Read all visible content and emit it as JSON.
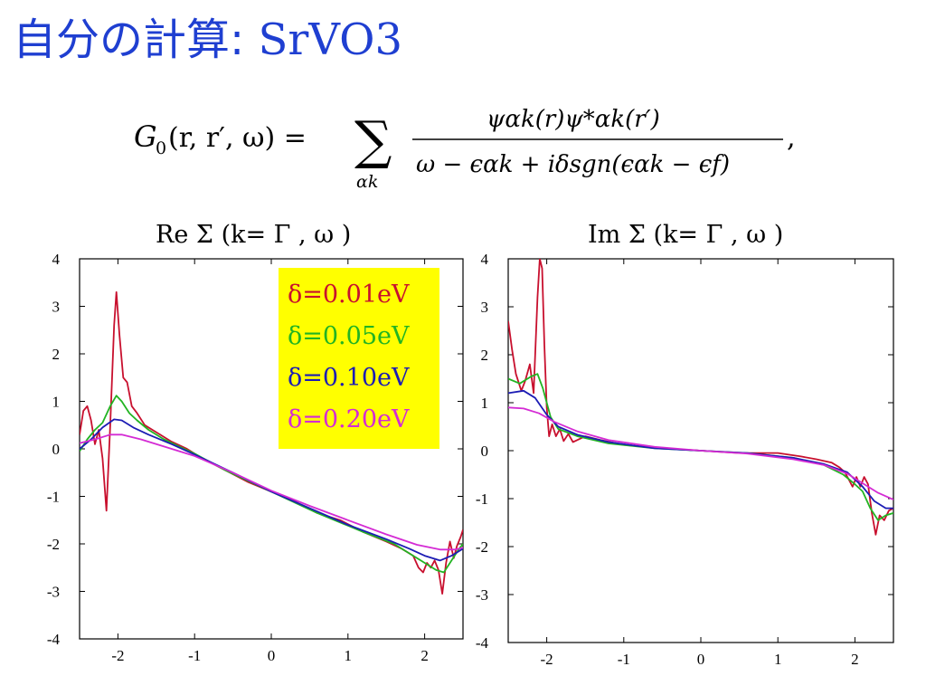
{
  "slide": {
    "title_jp": "自分の計算:",
    "title_latin": "SrVO3"
  },
  "formula": {
    "lhs": "G",
    "lhs_sub": "0",
    "lhs_args": "(r, r′, ω) =",
    "sum": "∑",
    "sum_sub": "αk",
    "numerator": "ψαk(r)ψ*αk(r′)",
    "denominator": "ω − ϵαk + iδsgn(ϵαk − ϵf)",
    "trail": ","
  },
  "legend": {
    "items": [
      {
        "label": "δ=0.01eV",
        "color": "#c8102e"
      },
      {
        "label": "δ=0.05eV",
        "color": "#22b422"
      },
      {
        "label": "δ=0.10eV",
        "color": "#1c1cb4"
      },
      {
        "label": "δ=0.20eV",
        "color": "#d42bd4"
      }
    ]
  },
  "colors": {
    "title": "#1f3fd1",
    "legend_bg": "#ffff00"
  },
  "chart_data": [
    {
      "type": "line",
      "title": "Re Σ (k= Γ , ω )",
      "xlim": [
        -2.5,
        2.5
      ],
      "ylim": [
        -4,
        4
      ],
      "xticks": [
        -2,
        -1,
        0,
        1,
        2
      ],
      "yticks": [
        4,
        3,
        2,
        1,
        0,
        -1,
        -2,
        -3,
        -4
      ],
      "series": [
        {
          "name": "δ=0.01eV",
          "color": "#c8102e",
          "points": [
            [
              -2.5,
              0.3
            ],
            [
              -2.45,
              0.8
            ],
            [
              -2.4,
              0.9
            ],
            [
              -2.35,
              0.6
            ],
            [
              -2.3,
              0.1
            ],
            [
              -2.25,
              0.4
            ],
            [
              -2.2,
              -0.2
            ],
            [
              -2.15,
              -1.3
            ],
            [
              -2.1,
              0.5
            ],
            [
              -2.05,
              2.6
            ],
            [
              -2.02,
              3.3
            ],
            [
              -1.98,
              2.4
            ],
            [
              -1.93,
              1.5
            ],
            [
              -1.88,
              1.4
            ],
            [
              -1.82,
              0.9
            ],
            [
              -1.75,
              0.75
            ],
            [
              -1.65,
              0.5
            ],
            [
              -1.5,
              0.35
            ],
            [
              -1.3,
              0.15
            ],
            [
              -1.1,
              0.0
            ],
            [
              -0.9,
              -0.2
            ],
            [
              -0.6,
              -0.45
            ],
            [
              -0.3,
              -0.7
            ],
            [
              0.0,
              -0.9
            ],
            [
              0.3,
              -1.1
            ],
            [
              0.6,
              -1.35
            ],
            [
              0.9,
              -1.5
            ],
            [
              1.2,
              -1.75
            ],
            [
              1.5,
              -1.95
            ],
            [
              1.7,
              -2.1
            ],
            [
              1.85,
              -2.25
            ],
            [
              1.92,
              -2.5
            ],
            [
              1.98,
              -2.6
            ],
            [
              2.03,
              -2.4
            ],
            [
              2.08,
              -2.5
            ],
            [
              2.13,
              -2.35
            ],
            [
              2.18,
              -2.55
            ],
            [
              2.23,
              -3.05
            ],
            [
              2.28,
              -2.4
            ],
            [
              2.33,
              -1.95
            ],
            [
              2.38,
              -2.3
            ],
            [
              2.42,
              -2.05
            ],
            [
              2.47,
              -1.85
            ],
            [
              2.5,
              -1.7
            ]
          ]
        },
        {
          "name": "δ=0.05eV",
          "color": "#22b422",
          "points": [
            [
              -2.5,
              -0.05
            ],
            [
              -2.4,
              0.2
            ],
            [
              -2.3,
              0.4
            ],
            [
              -2.2,
              0.55
            ],
            [
              -2.1,
              0.9
            ],
            [
              -2.02,
              1.12
            ],
            [
              -1.95,
              1.0
            ],
            [
              -1.85,
              0.75
            ],
            [
              -1.75,
              0.6
            ],
            [
              -1.6,
              0.4
            ],
            [
              -1.4,
              0.2
            ],
            [
              -1.2,
              0.05
            ],
            [
              -1.0,
              -0.1
            ],
            [
              -0.6,
              -0.45
            ],
            [
              0.0,
              -0.9
            ],
            [
              0.6,
              -1.35
            ],
            [
              1.2,
              -1.75
            ],
            [
              1.6,
              -2.0
            ],
            [
              1.85,
              -2.25
            ],
            [
              1.95,
              -2.35
            ],
            [
              2.05,
              -2.45
            ],
            [
              2.15,
              -2.55
            ],
            [
              2.25,
              -2.6
            ],
            [
              2.35,
              -2.35
            ],
            [
              2.45,
              -2.1
            ],
            [
              2.5,
              -2.0
            ]
          ]
        },
        {
          "name": "δ=0.10eV",
          "color": "#1c1cb4",
          "points": [
            [
              -2.5,
              0.0
            ],
            [
              -2.35,
              0.2
            ],
            [
              -2.2,
              0.45
            ],
            [
              -2.05,
              0.62
            ],
            [
              -1.95,
              0.6
            ],
            [
              -1.8,
              0.45
            ],
            [
              -1.6,
              0.3
            ],
            [
              -1.3,
              0.1
            ],
            [
              -1.0,
              -0.12
            ],
            [
              -0.5,
              -0.5
            ],
            [
              0.0,
              -0.9
            ],
            [
              0.5,
              -1.25
            ],
            [
              1.0,
              -1.6
            ],
            [
              1.5,
              -1.9
            ],
            [
              1.8,
              -2.1
            ],
            [
              2.0,
              -2.25
            ],
            [
              2.2,
              -2.35
            ],
            [
              2.35,
              -2.25
            ],
            [
              2.5,
              -2.1
            ]
          ]
        },
        {
          "name": "δ=0.20eV",
          "color": "#d42bd4",
          "points": [
            [
              -2.5,
              0.12
            ],
            [
              -2.3,
              0.2
            ],
            [
              -2.1,
              0.3
            ],
            [
              -1.95,
              0.3
            ],
            [
              -1.7,
              0.2
            ],
            [
              -1.4,
              0.05
            ],
            [
              -1.0,
              -0.15
            ],
            [
              -0.5,
              -0.5
            ],
            [
              0.0,
              -0.88
            ],
            [
              0.5,
              -1.2
            ],
            [
              1.0,
              -1.5
            ],
            [
              1.5,
              -1.8
            ],
            [
              1.9,
              -2.02
            ],
            [
              2.2,
              -2.12
            ],
            [
              2.4,
              -2.12
            ],
            [
              2.5,
              -2.08
            ]
          ]
        }
      ]
    },
    {
      "type": "line",
      "title": "Im Σ (k= Γ , ω )",
      "xlim": [
        -2.5,
        2.5
      ],
      "ylim": [
        -4,
        4
      ],
      "xticks": [
        -2,
        -1,
        0,
        1,
        2
      ],
      "yticks": [
        4,
        3,
        2,
        1,
        0,
        -1,
        -2,
        -3,
        -4
      ],
      "series": [
        {
          "name": "δ=0.01eV",
          "color": "#c8102e",
          "points": [
            [
              -2.5,
              2.7
            ],
            [
              -2.45,
              2.1
            ],
            [
              -2.4,
              1.6
            ],
            [
              -2.33,
              1.25
            ],
            [
              -2.28,
              1.45
            ],
            [
              -2.22,
              1.8
            ],
            [
              -2.17,
              1.2
            ],
            [
              -2.12,
              3.2
            ],
            [
              -2.09,
              4.0
            ],
            [
              -2.06,
              3.8
            ],
            [
              -2.03,
              2.2
            ],
            [
              -2.0,
              0.9
            ],
            [
              -1.97,
              0.3
            ],
            [
              -1.93,
              0.55
            ],
            [
              -1.88,
              0.3
            ],
            [
              -1.83,
              0.45
            ],
            [
              -1.78,
              0.2
            ],
            [
              -1.72,
              0.35
            ],
            [
              -1.66,
              0.18
            ],
            [
              -1.5,
              0.3
            ],
            [
              -1.3,
              0.22
            ],
            [
              -1.0,
              0.12
            ],
            [
              -0.5,
              0.05
            ],
            [
              0.0,
              0.0
            ],
            [
              0.5,
              -0.05
            ],
            [
              1.0,
              -0.05
            ],
            [
              1.3,
              -0.12
            ],
            [
              1.5,
              -0.18
            ],
            [
              1.7,
              -0.25
            ],
            [
              1.8,
              -0.35
            ],
            [
              1.87,
              -0.45
            ],
            [
              1.92,
              -0.6
            ],
            [
              1.97,
              -0.75
            ],
            [
              2.02,
              -0.55
            ],
            [
              2.07,
              -0.75
            ],
            [
              2.12,
              -0.55
            ],
            [
              2.17,
              -0.7
            ],
            [
              2.22,
              -1.3
            ],
            [
              2.27,
              -1.75
            ],
            [
              2.32,
              -1.35
            ],
            [
              2.38,
              -1.45
            ],
            [
              2.44,
              -1.25
            ],
            [
              2.5,
              -1.2
            ]
          ]
        },
        {
          "name": "δ=0.05eV",
          "color": "#22b422",
          "points": [
            [
              -2.5,
              1.5
            ],
            [
              -2.35,
              1.4
            ],
            [
              -2.2,
              1.55
            ],
            [
              -2.12,
              1.6
            ],
            [
              -2.05,
              1.3
            ],
            [
              -1.95,
              0.7
            ],
            [
              -1.85,
              0.45
            ],
            [
              -1.6,
              0.3
            ],
            [
              -1.2,
              0.15
            ],
            [
              -0.6,
              0.05
            ],
            [
              0.0,
              0.0
            ],
            [
              0.6,
              -0.05
            ],
            [
              1.2,
              -0.15
            ],
            [
              1.6,
              -0.3
            ],
            [
              1.85,
              -0.5
            ],
            [
              2.0,
              -0.7
            ],
            [
              2.1,
              -0.85
            ],
            [
              2.2,
              -1.2
            ],
            [
              2.3,
              -1.45
            ],
            [
              2.4,
              -1.35
            ],
            [
              2.5,
              -1.3
            ]
          ]
        },
        {
          "name": "δ=0.10eV",
          "color": "#1c1cb4",
          "points": [
            [
              -2.5,
              1.2
            ],
            [
              -2.3,
              1.25
            ],
            [
              -2.15,
              1.1
            ],
            [
              -2.0,
              0.75
            ],
            [
              -1.85,
              0.5
            ],
            [
              -1.6,
              0.33
            ],
            [
              -1.2,
              0.18
            ],
            [
              -0.6,
              0.05
            ],
            [
              0.0,
              0.0
            ],
            [
              0.6,
              -0.05
            ],
            [
              1.2,
              -0.15
            ],
            [
              1.6,
              -0.28
            ],
            [
              1.9,
              -0.45
            ],
            [
              2.1,
              -0.75
            ],
            [
              2.25,
              -1.05
            ],
            [
              2.4,
              -1.2
            ],
            [
              2.5,
              -1.2
            ]
          ]
        },
        {
          "name": "δ=0.20eV",
          "color": "#d42bd4",
          "points": [
            [
              -2.5,
              0.9
            ],
            [
              -2.3,
              0.88
            ],
            [
              -2.1,
              0.78
            ],
            [
              -1.9,
              0.6
            ],
            [
              -1.6,
              0.4
            ],
            [
              -1.2,
              0.22
            ],
            [
              -0.6,
              0.08
            ],
            [
              0.0,
              0.0
            ],
            [
              0.6,
              -0.06
            ],
            [
              1.2,
              -0.18
            ],
            [
              1.6,
              -0.3
            ],
            [
              1.9,
              -0.48
            ],
            [
              2.1,
              -0.68
            ],
            [
              2.3,
              -0.88
            ],
            [
              2.5,
              -1.02
            ]
          ]
        }
      ]
    }
  ]
}
